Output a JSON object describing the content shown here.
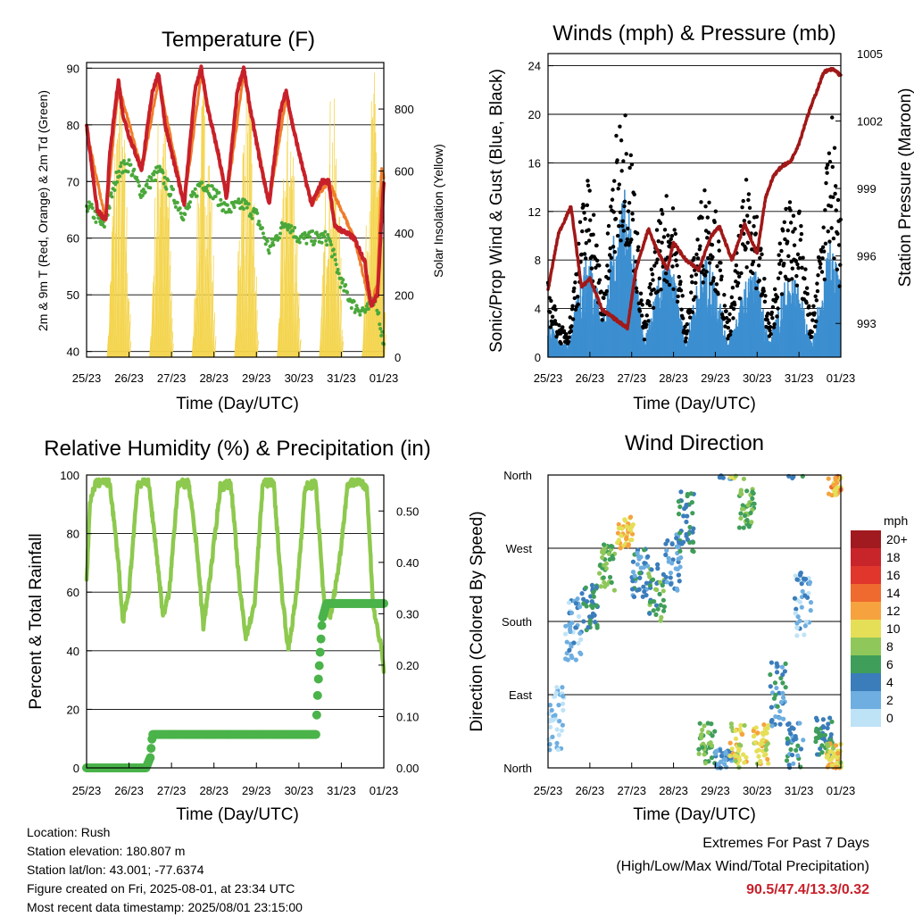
{
  "days": [
    "25/23",
    "26/23",
    "27/23",
    "28/23",
    "29/23",
    "30/23",
    "31/23",
    "01/23"
  ],
  "panels": {
    "temperature": {
      "title": "Temperature (F)",
      "xlabel": "Time (Day/UTC)",
      "ylabel_left": "2m & 9m T (Red, Orange) & 2m Td (Green)",
      "ylabel_right": "Solar Insolation (Yellow)",
      "yticks_left": [
        "40",
        "50",
        "60",
        "70",
        "80",
        "90"
      ],
      "yticks_right": [
        "0",
        "200",
        "400",
        "600",
        "800"
      ]
    },
    "winds": {
      "title": "Winds (mph) & Pressure (mb)",
      "xlabel": "Time (Day/UTC)",
      "ylabel_left": "Sonic/Prop Wind & Gust (Blue, Black)",
      "ylabel_right": "Station Pressure (Maroon)",
      "yticks_left": [
        "0",
        "4",
        "8",
        "12",
        "16",
        "20",
        "24"
      ],
      "yticks_right": [
        "993",
        "996",
        "999",
        "1002",
        "1005"
      ]
    },
    "humidity": {
      "title": "Relative Humidity (%) & Precipitation (in)",
      "xlabel": "Time (Day/UTC)",
      "ylabel_left": "Percent & Total Rainfall",
      "yticks_left": [
        "0",
        "20",
        "40",
        "60",
        "80",
        "100"
      ],
      "yticks_right": [
        "0.00",
        "0.10",
        "0.20",
        "0.30",
        "0.40",
        "0.50"
      ]
    },
    "wind_direction": {
      "title": "Wind Direction",
      "xlabel": "Time (Day/UTC)",
      "ylabel_left": "Direction (Colored By Speed)",
      "yticks_left": [
        "North",
        "East",
        "South",
        "West",
        "North"
      ],
      "legend_title": "mph",
      "legend_labels": [
        "20+",
        "18",
        "16",
        "14",
        "12",
        "10",
        "8",
        "6",
        "4",
        "2",
        "0"
      ],
      "legend_colors": [
        "#a11a1f",
        "#c8252b",
        "#e0362c",
        "#ef6a2e",
        "#f6a23e",
        "#e5df57",
        "#8fc75a",
        "#3f9e5a",
        "#3b7dbb",
        "#6eaee0",
        "#bfe3f6"
      ]
    }
  },
  "station_info": {
    "location": "Location: Rush",
    "elevation": "Station elevation: 180.807 m",
    "latlon": "Station lat/lon: 43.001; -77.6374",
    "created": "Figure created on Fri, 2025-08-01, at 23:34 UTC",
    "recent": "Most recent data timestamp: 2025/08/01 23:15:00"
  },
  "extremes": {
    "line1": "Extremes For Past 7 Days",
    "line2": "(High/Low/Max Wind/Total Precipitation)",
    "values": "90.5/47.4/13.3/0.32"
  },
  "chart_data": [
    {
      "type": "line",
      "title": "Temperature (F)",
      "xlabel": "Time (Day/UTC)",
      "ylabel": "2m & 9m T (Red, Orange) & 2m Td (Green)",
      "ylim": [
        39,
        91
      ],
      "y2label": "Solar Insolation (Yellow)",
      "y2lim": [
        0,
        950
      ],
      "x_days": [
        0,
        0.5,
        0.75,
        1.0,
        1.5,
        1.75,
        2.0,
        2.5,
        2.75,
        3.0,
        3.5,
        3.75,
        4.0,
        4.5,
        4.75,
        5.0,
        5.5,
        5.75,
        6.0,
        6.5,
        6.75,
        7.0
      ],
      "series": [
        {
          "name": "2m T",
          "color": "#c8202a",
          "x": [
            0,
            0.25,
            0.45,
            0.55,
            0.75,
            0.85,
            1.0,
            1.2,
            1.3,
            1.55,
            1.7,
            1.85,
            2.1,
            2.3,
            2.55,
            2.7,
            2.85,
            3.1,
            3.3,
            3.55,
            3.7,
            3.85,
            4.1,
            4.3,
            4.55,
            4.7,
            4.85,
            5.1,
            5.3,
            5.55,
            5.7,
            5.85,
            6.1,
            6.3,
            6.55,
            6.7,
            6.85,
            7.0
          ],
          "y": [
            80,
            65,
            63,
            75,
            88,
            82,
            78,
            74,
            72,
            86,
            89,
            80,
            72,
            66,
            86,
            90,
            83,
            75,
            67,
            86,
            90,
            83,
            73,
            66,
            82,
            86,
            80,
            72,
            66,
            70,
            70,
            62,
            61,
            60,
            56,
            48,
            50,
            70
          ]
        },
        {
          "name": "9m T",
          "color": "#f07d2a",
          "x": [
            0,
            0.45,
            0.75,
            1.3,
            1.7,
            2.3,
            2.7,
            3.3,
            3.7,
            4.3,
            4.7,
            5.3,
            5.7,
            6.3,
            6.7,
            6.85,
            6.95,
            7.0
          ],
          "y": [
            79,
            63,
            87,
            72,
            88,
            66,
            89,
            67,
            89,
            66,
            85,
            66,
            70,
            60,
            48,
            52,
            72,
            71
          ]
        },
        {
          "name": "2m Td",
          "color": "#4aa83a",
          "x": [
            0,
            0.4,
            0.75,
            1.0,
            1.3,
            1.7,
            2.0,
            2.3,
            2.7,
            3.0,
            3.3,
            3.7,
            4.0,
            4.3,
            4.7,
            5.0,
            5.3,
            5.7,
            6.0,
            6.3,
            6.6,
            6.8,
            7.0
          ],
          "y": [
            66,
            62,
            72,
            73,
            68,
            72,
            68,
            64,
            70,
            68,
            65,
            66,
            64,
            58,
            63,
            60,
            60,
            60,
            52,
            48,
            47,
            50,
            41
          ]
        },
        {
          "name": "Solar",
          "axis": "right",
          "color": "#f4d44c",
          "peaks_day_center": [
            0.75,
            1.75,
            2.75,
            3.75,
            4.75,
            5.75,
            6.75
          ],
          "peaks": [
            920,
            930,
            920,
            910,
            860,
            880,
            940
          ]
        }
      ]
    },
    {
      "type": "line",
      "title": "Winds (mph) & Pressure (mb)",
      "xlabel": "Time (Day/UTC)",
      "ylabel": "Sonic/Prop Wind & Gust (Blue, Black)",
      "ylim": [
        0,
        25
      ],
      "y2label": "Station Pressure (Maroon)",
      "y2lim": [
        991.5,
        1005
      ],
      "series": [
        {
          "name": "Wind",
          "color": "#3c8fd0",
          "x": [
            0,
            0.3,
            0.5,
            0.8,
            1.0,
            1.3,
            1.6,
            1.8,
            2.0,
            2.3,
            2.6,
            2.8,
            3.0,
            3.3,
            3.6,
            3.8,
            4.0,
            4.3,
            4.6,
            4.8,
            5.0,
            5.3,
            5.6,
            5.8,
            6.0,
            6.3,
            6.6,
            6.8,
            7.0
          ],
          "y": [
            3,
            1,
            1,
            6,
            8,
            3,
            9,
            12,
            9,
            1,
            5,
            7,
            6,
            1,
            6,
            7,
            6,
            1,
            4,
            6,
            6,
            1,
            5,
            6,
            5,
            1,
            6,
            9,
            5
          ]
        },
        {
          "name": "Gust",
          "color": "#000000",
          "x": [
            0,
            0.3,
            0.5,
            0.8,
            1.0,
            1.3,
            1.6,
            1.8,
            2.0,
            2.3,
            2.6,
            2.8,
            3.0,
            3.3,
            3.6,
            3.8,
            4.0,
            4.3,
            4.6,
            4.8,
            5.0,
            5.3,
            5.6,
            5.8,
            6.0,
            6.3,
            6.6,
            6.8,
            7.0
          ],
          "y": [
            5,
            2,
            2,
            10,
            13,
            4,
            14,
            18,
            14,
            2,
            9,
            11,
            10,
            2,
            10,
            12,
            10,
            2,
            9,
            13,
            10,
            2,
            9,
            11,
            10,
            2,
            11,
            16,
            9
          ]
        },
        {
          "name": "Pressure",
          "axis": "right",
          "color": "#a01818",
          "x": [
            0,
            0.25,
            0.55,
            0.8,
            1.0,
            1.3,
            1.6,
            1.9,
            2.1,
            2.4,
            2.6,
            2.85,
            3.0,
            3.3,
            3.6,
            3.9,
            4.1,
            4.4,
            4.7,
            5.0,
            5.2,
            5.4,
            5.6,
            5.8,
            6.0,
            6.2,
            6.4,
            6.6,
            6.8,
            6.9,
            7.0
          ],
          "y": [
            994.5,
            997,
            998.2,
            994.6,
            995.0,
            993.6,
            993.2,
            992.8,
            995.4,
            997.2,
            996.3,
            995.4,
            996.6,
            995.8,
            995.4,
            996.9,
            997.3,
            995.8,
            997.4,
            996.1,
            998.6,
            999.6,
            1000,
            1000.2,
            1001,
            1002.2,
            1003.2,
            1004.2,
            1004.3,
            1004.2,
            1004
          ]
        }
      ]
    },
    {
      "type": "line",
      "title": "Relative Humidity (%) & Precipitation (in)",
      "xlabel": "Time (Day/UTC)",
      "ylabel": "Percent & Total Rainfall",
      "ylim": [
        0,
        100
      ],
      "y2lim": [
        0,
        0.57
      ],
      "series": [
        {
          "name": "RH",
          "color": "#8dc94e",
          "x": [
            0,
            0.08,
            0.2,
            0.4,
            0.55,
            0.75,
            0.85,
            1.0,
            1.2,
            1.45,
            1.6,
            1.8,
            1.95,
            2.15,
            2.4,
            2.6,
            2.75,
            2.95,
            3.15,
            3.4,
            3.6,
            3.75,
            3.95,
            4.15,
            4.4,
            4.6,
            4.75,
            4.95,
            5.15,
            5.4,
            5.6,
            5.75,
            5.95,
            6.15,
            6.4,
            6.6,
            6.75,
            6.95,
            7.0
          ],
          "y": [
            64,
            90,
            97,
            98,
            97,
            70,
            50,
            60,
            97,
            98,
            80,
            52,
            60,
            97,
            97,
            75,
            48,
            70,
            96,
            97,
            62,
            45,
            55,
            97,
            98,
            60,
            40,
            60,
            96,
            97,
            55,
            52,
            70,
            97,
            98,
            96,
            55,
            40,
            33
          ]
        },
        {
          "name": "Total Precipitation",
          "axis": "right",
          "color": "#4ab34a",
          "x": [
            0,
            1.4,
            1.5,
            1.55,
            2.0,
            5.4,
            5.45,
            5.55,
            5.65,
            7.0
          ],
          "y": [
            0,
            0,
            0.02,
            0.065,
            0.065,
            0.065,
            0.16,
            0.29,
            0.32,
            0.32
          ]
        }
      ]
    },
    {
      "type": "scatter",
      "title": "Wind Direction",
      "xlabel": "Time (Day/UTC)",
      "ylabel": "Direction (Colored By Speed)",
      "ylim": [
        0,
        360
      ],
      "yticks": [
        "North",
        "East",
        "South",
        "West",
        "North"
      ],
      "legend": {
        "title": "mph",
        "labels": [
          "20+",
          "18",
          "16",
          "14",
          "12",
          "10",
          "8",
          "6",
          "4",
          "2",
          "0"
        ]
      },
      "clusters": [
        {
          "day": 0.2,
          "dir": 60,
          "spread": 40,
          "speed": 1
        },
        {
          "day": 0.6,
          "dir": 170,
          "spread": 40,
          "speed": 2
        },
        {
          "day": 1.0,
          "dir": 195,
          "spread": 30,
          "speed": 5
        },
        {
          "day": 1.4,
          "dir": 245,
          "spread": 30,
          "speed": 7
        },
        {
          "day": 1.85,
          "dir": 290,
          "spread": 20,
          "speed": 11
        },
        {
          "day": 2.2,
          "dir": 240,
          "spread": 30,
          "speed": 4
        },
        {
          "day": 2.6,
          "dir": 215,
          "spread": 35,
          "speed": 6
        },
        {
          "day": 3.0,
          "dir": 250,
          "spread": 40,
          "speed": 3
        },
        {
          "day": 3.3,
          "dir": 300,
          "spread": 40,
          "speed": 5
        },
        {
          "day": 3.8,
          "dir": 30,
          "spread": 25,
          "speed": 7
        },
        {
          "day": 4.2,
          "dir": 10,
          "spread": 15,
          "speed": 3
        },
        {
          "day": 4.55,
          "dir": 25,
          "spread": 30,
          "speed": 10
        },
        {
          "day": 4.75,
          "dir": 320,
          "spread": 25,
          "speed": 7
        },
        {
          "day": 5.1,
          "dir": 30,
          "spread": 25,
          "speed": 10
        },
        {
          "day": 5.5,
          "dir": 90,
          "spread": 40,
          "speed": 4
        },
        {
          "day": 5.9,
          "dir": 25,
          "spread": 30,
          "speed": 4
        },
        {
          "day": 6.1,
          "dir": 200,
          "spread": 40,
          "speed": 2
        },
        {
          "day": 6.6,
          "dir": 40,
          "spread": 25,
          "speed": 5
        },
        {
          "day": 6.85,
          "dir": 350,
          "spread": 15,
          "speed": 12
        },
        {
          "day": 6.85,
          "dir": 15,
          "spread": 15,
          "speed": 10
        }
      ]
    }
  ]
}
